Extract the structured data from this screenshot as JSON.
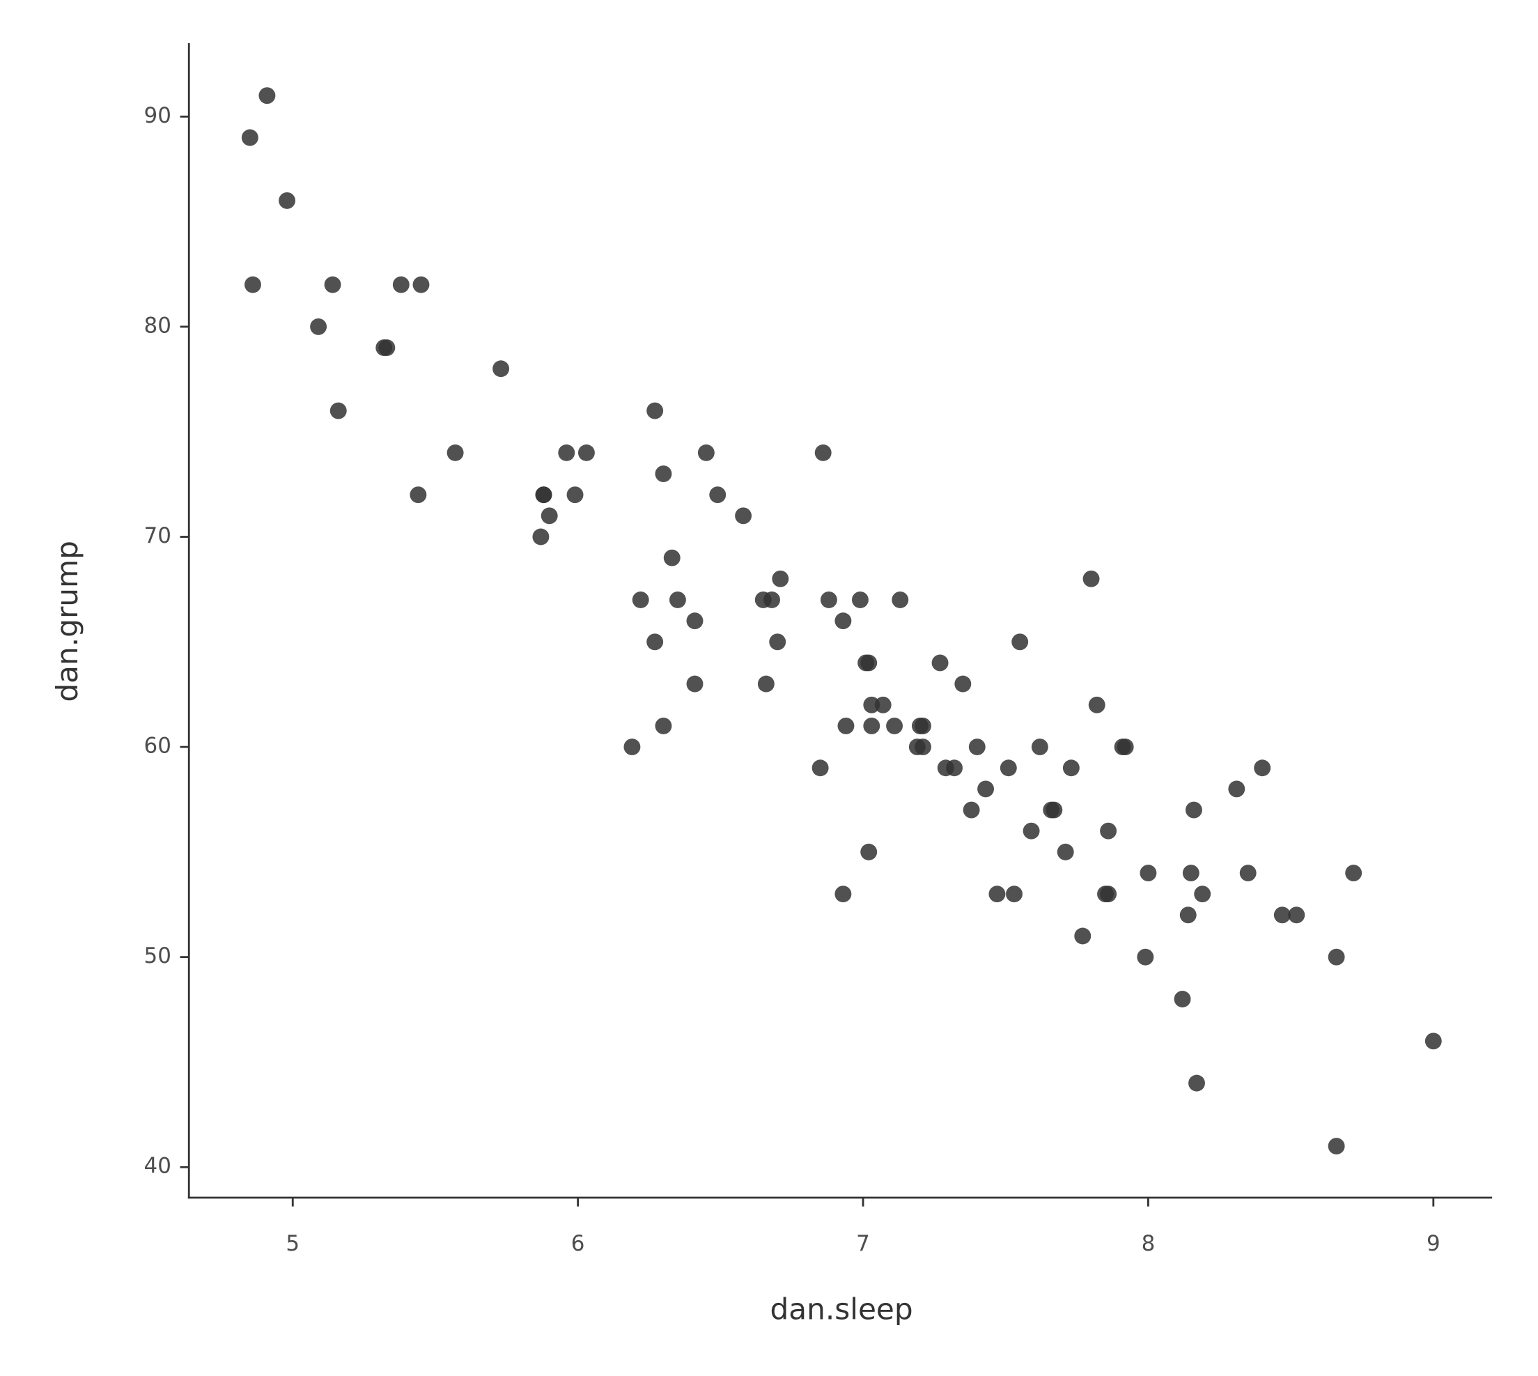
{
  "chart_data": {
    "type": "scatter",
    "x_label": "dan.sleep",
    "y_label": "dan.grump",
    "color": "#333333",
    "xlim": [
      4.636,
      9.206
    ],
    "ylim": [
      38.55,
      93.45
    ],
    "xticks": [
      5,
      6,
      7,
      8,
      9
    ],
    "yticks": [
      40,
      50,
      60,
      70,
      80,
      90
    ],
    "x": [
      4.91,
      4.85,
      4.98,
      4.86,
      5.14,
      5.38,
      5.45,
      5.09,
      5.32,
      5.33,
      5.73,
      5.16,
      6.27,
      5.57,
      5.96,
      6.03,
      6.45,
      6.86,
      6.3,
      5.44,
      5.88,
      5.88,
      5.99,
      6.49,
      5.9,
      6.58,
      5.87,
      6.33,
      6.71,
      7.8,
      6.22,
      6.35,
      6.65,
      6.68,
      6.88,
      6.99,
      7.13,
      6.41,
      6.93,
      6.27,
      6.7,
      7.55,
      7.01,
      7.02,
      7.27,
      6.41,
      6.66,
      7.35,
      7.03,
      7.07,
      7.82,
      6.3,
      6.94,
      7.03,
      7.11,
      7.2,
      7.21,
      6.19,
      7.19,
      7.21,
      7.4,
      7.62,
      7.91,
      7.92,
      6.85,
      7.29,
      7.32,
      7.51,
      7.73,
      8.4,
      7.43,
      8.31,
      7.38,
      7.66,
      7.67,
      8.16,
      7.59,
      7.86,
      7.02,
      7.71,
      8.0,
      8.15,
      8.35,
      8.72,
      6.93,
      7.47,
      7.53,
      7.85,
      7.86,
      8.19,
      8.14,
      8.47,
      8.52,
      7.77,
      7.99,
      8.66,
      8.12,
      9.0,
      8.17,
      8.66
    ],
    "y": [
      91,
      89,
      86,
      82,
      82,
      82,
      82,
      80,
      79,
      79,
      78,
      76,
      76,
      74,
      74,
      74,
      74,
      74,
      73,
      72,
      72,
      72,
      72,
      72,
      71,
      71,
      70,
      69,
      68,
      68,
      67,
      67,
      67,
      67,
      67,
      67,
      67,
      66,
      66,
      65,
      65,
      65,
      64,
      64,
      64,
      63,
      63,
      63,
      62,
      62,
      62,
      61,
      61,
      61,
      61,
      61,
      61,
      60,
      60,
      60,
      60,
      60,
      60,
      60,
      59,
      59,
      59,
      59,
      59,
      59,
      58,
      58,
      57,
      57,
      57,
      57,
      56,
      56,
      55,
      55,
      54,
      54,
      54,
      54,
      53,
      53,
      53,
      53,
      53,
      53,
      52,
      52,
      52,
      51,
      50,
      50,
      48,
      46,
      44,
      41
    ]
  }
}
